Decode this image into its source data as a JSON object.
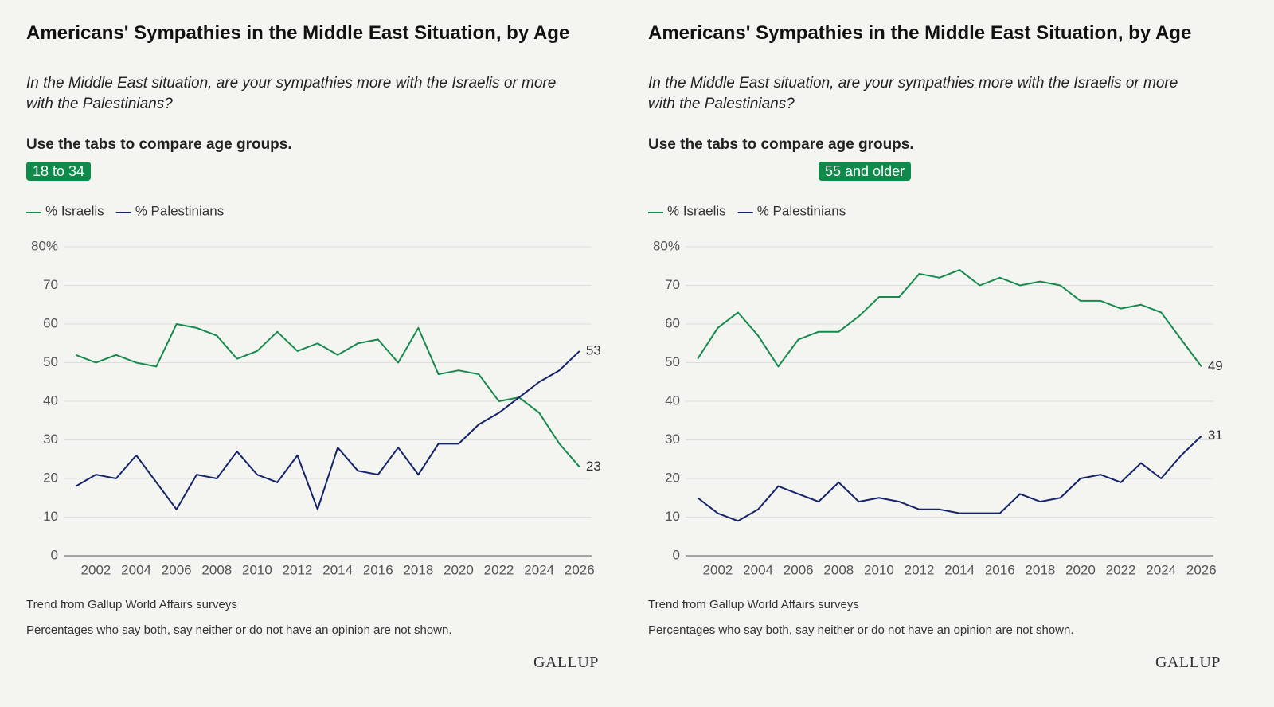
{
  "chart_data": [
    {
      "type": "line",
      "title": "Americans' Sympathies in the Middle East Situation, by Age",
      "subtitle": "In the Middle East situation, are your sympathies more with the Israelis or more with the Palestinians?",
      "instruction": "Use the tabs to compare age groups.",
      "tab": "18 to 34",
      "x": [
        2001,
        2002,
        2003,
        2004,
        2005,
        2006,
        2007,
        2008,
        2009,
        2010,
        2011,
        2012,
        2013,
        2014,
        2015,
        2016,
        2017,
        2018,
        2019,
        2020,
        2021,
        2022,
        2023,
        2024,
        2025,
        2026
      ],
      "series": [
        {
          "name": "% Israelis",
          "color": "#168a4e",
          "values": [
            52,
            50,
            52,
            50,
            49,
            60,
            59,
            57,
            51,
            53,
            58,
            53,
            55,
            52,
            55,
            56,
            50,
            59,
            47,
            48,
            47,
            40,
            41,
            37,
            29,
            23
          ]
        },
        {
          "name": "% Palestinians",
          "color": "#15236b",
          "values": [
            18,
            21,
            20,
            26,
            19,
            12,
            21,
            20,
            27,
            21,
            19,
            26,
            12,
            28,
            22,
            21,
            28,
            21,
            29,
            29,
            34,
            37,
            41,
            45,
            48,
            53
          ]
        }
      ],
      "xlim": [
        2000.4,
        2026.6
      ],
      "xticks": [
        2002,
        2004,
        2006,
        2008,
        2010,
        2012,
        2014,
        2016,
        2018,
        2020,
        2022,
        2024,
        2026
      ],
      "ylim": [
        0,
        80
      ],
      "yticks": [
        0,
        10,
        20,
        30,
        40,
        50,
        60,
        70,
        {
          "value": 80,
          "label": "80%"
        }
      ],
      "grid": true,
      "notes": [
        "Trend from Gallup World Affairs surveys",
        "Percentages who say both, say neither or do not have an opinion are not shown."
      ],
      "logo": "GALLUP"
    },
    {
      "type": "line",
      "title": "Americans' Sympathies in the Middle East Situation, by Age",
      "subtitle": "In the Middle East situation, are your sympathies more with the Israelis or more with the Palestinians?",
      "instruction": "Use the tabs to compare age groups.",
      "tab": "55 and older",
      "x": [
        2001,
        2002,
        2003,
        2004,
        2005,
        2006,
        2007,
        2008,
        2009,
        2010,
        2011,
        2012,
        2013,
        2014,
        2015,
        2016,
        2017,
        2018,
        2019,
        2020,
        2021,
        2022,
        2023,
        2024,
        2025,
        2026
      ],
      "series": [
        {
          "name": "% Israelis",
          "color": "#168a4e",
          "values": [
            51,
            59,
            63,
            57,
            49,
            56,
            58,
            58,
            62,
            67,
            67,
            73,
            72,
            74,
            70,
            72,
            70,
            71,
            70,
            66,
            66,
            64,
            65,
            63,
            56,
            49
          ]
        },
        {
          "name": "% Palestinians",
          "color": "#15236b",
          "values": [
            15,
            11,
            9,
            12,
            18,
            16,
            14,
            19,
            14,
            15,
            14,
            12,
            12,
            11,
            11,
            11,
            16,
            14,
            15,
            20,
            21,
            19,
            24,
            20,
            26,
            31
          ]
        }
      ],
      "xlim": [
        2000.4,
        2026.6
      ],
      "xticks": [
        2002,
        2004,
        2006,
        2008,
        2010,
        2012,
        2014,
        2016,
        2018,
        2020,
        2022,
        2024,
        2026
      ],
      "ylim": [
        0,
        80
      ],
      "yticks": [
        0,
        10,
        20,
        30,
        40,
        50,
        60,
        70,
        {
          "value": 80,
          "label": "80%"
        }
      ],
      "grid": true,
      "notes": [
        "Trend from Gallup World Affairs surveys",
        "Percentages who say both, say neither or do not have an opinion are not shown."
      ],
      "logo": "GALLUP"
    }
  ]
}
